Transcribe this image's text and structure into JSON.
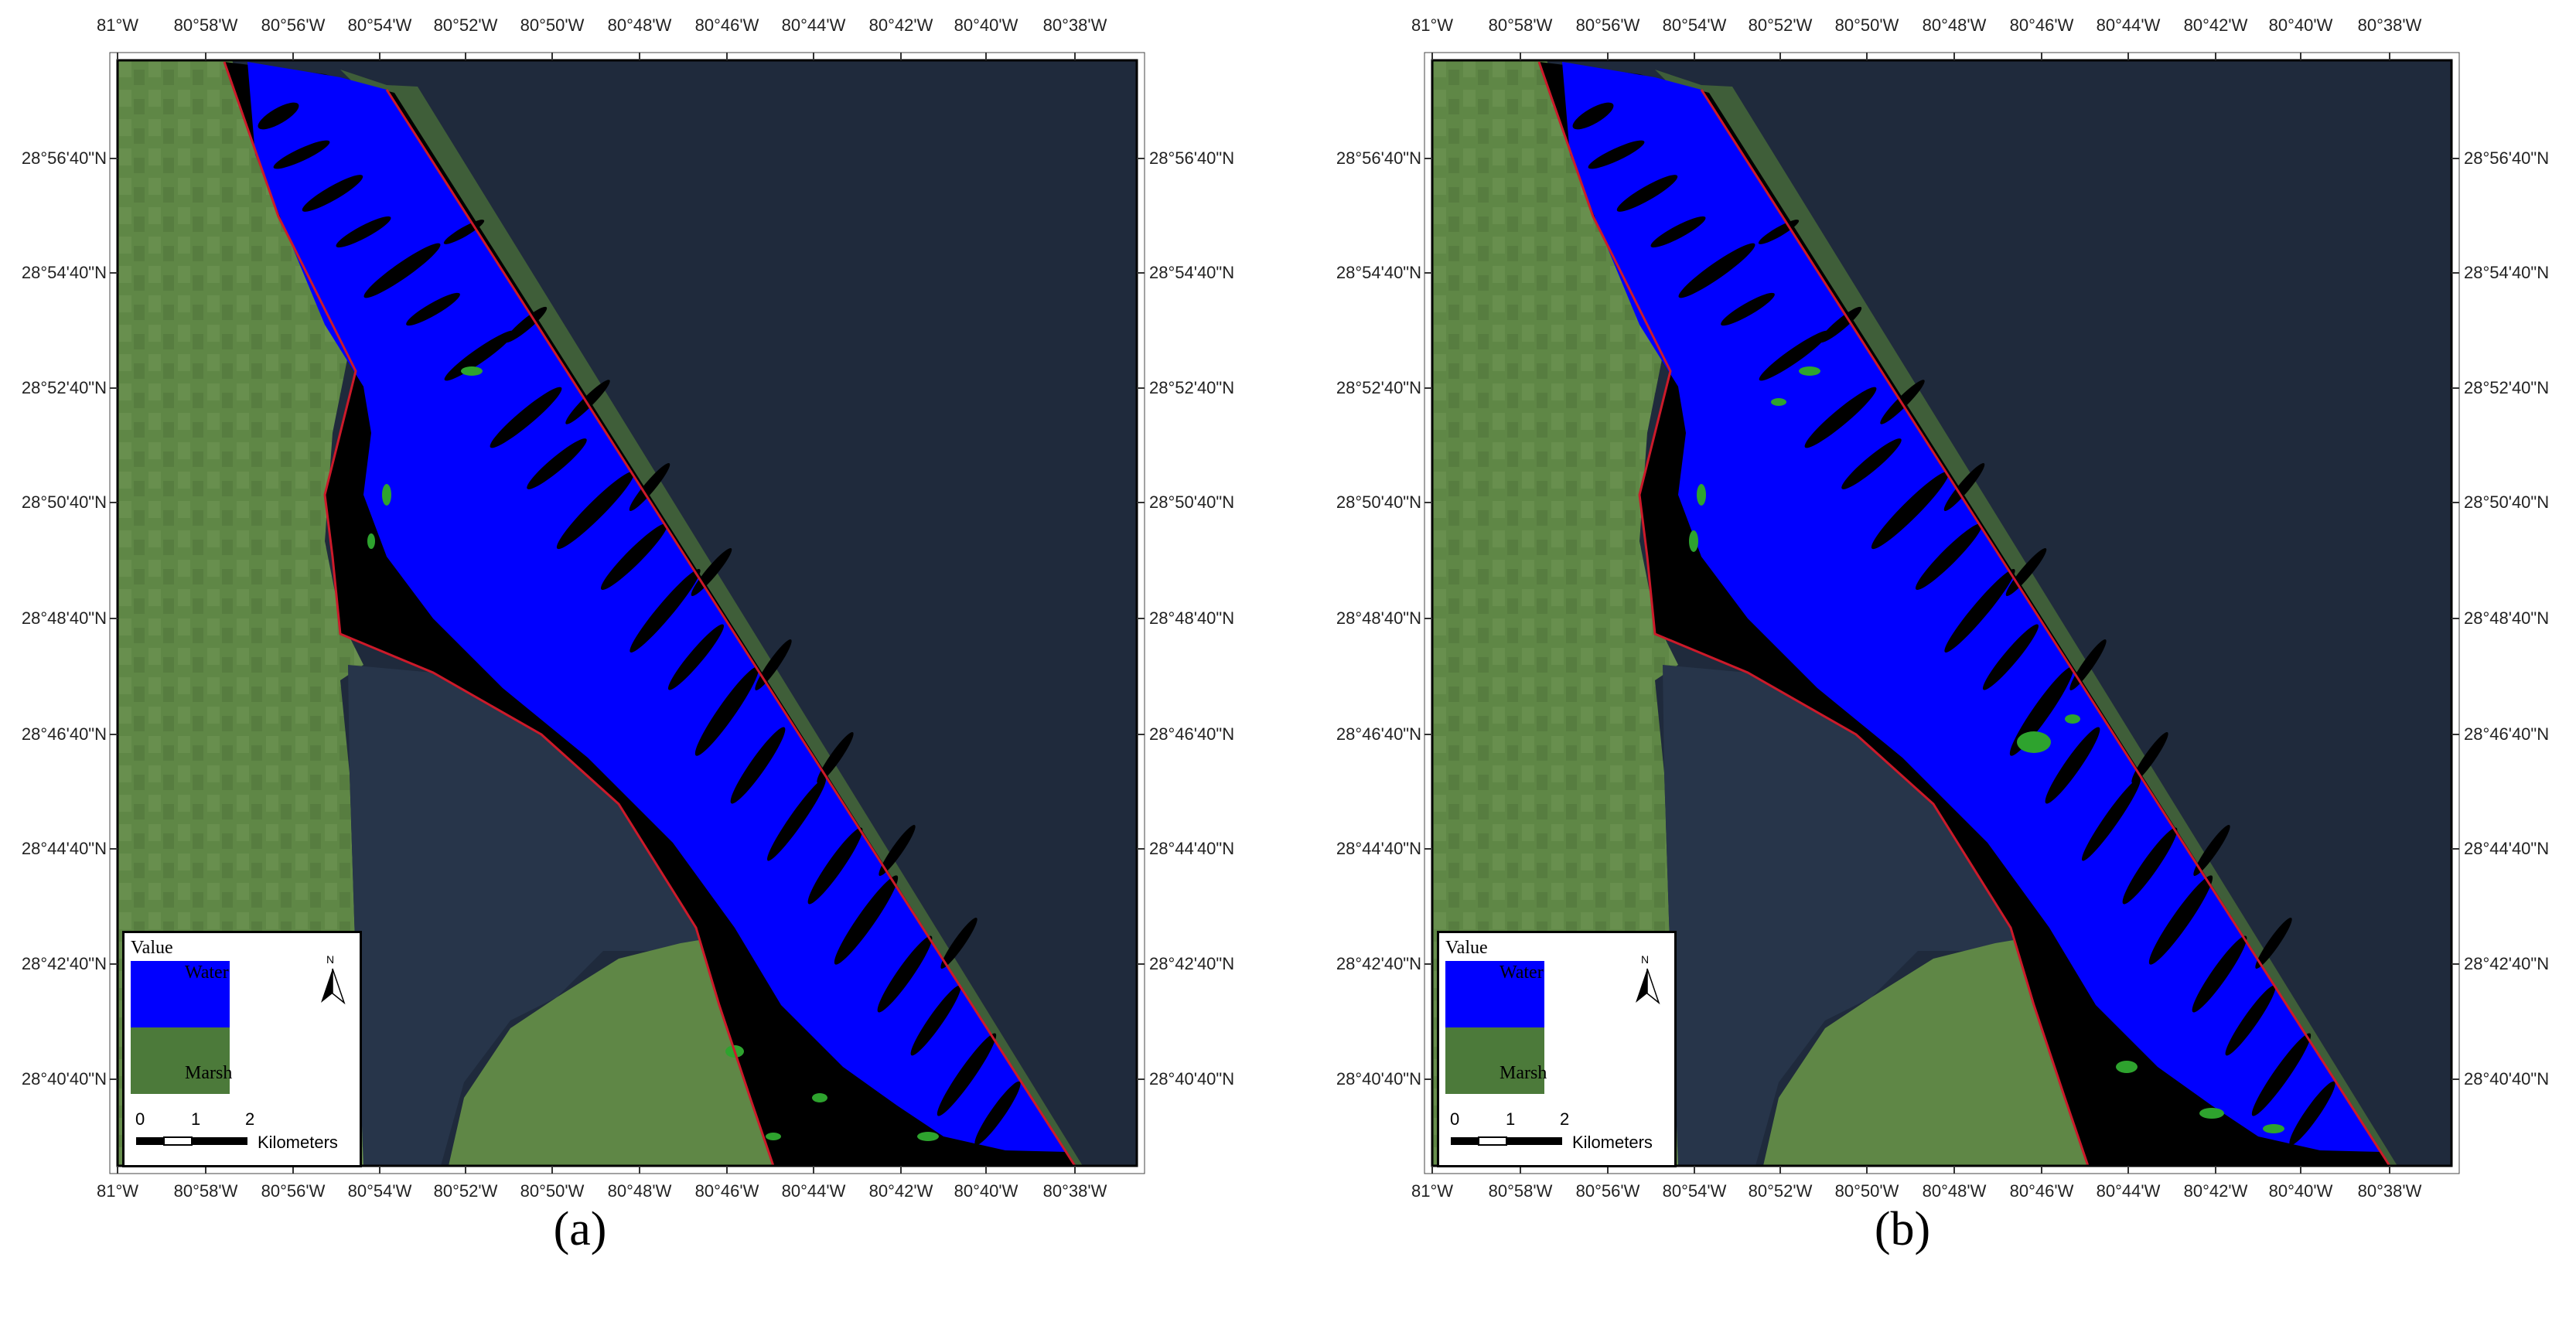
{
  "figure": {
    "panels": [
      {
        "id": "a",
        "caption": "(a)",
        "classes": {
          "title": "Value",
          "items": [
            {
              "label": "Water",
              "color": "#0000ff"
            },
            {
              "label": "Marsh",
              "color": "#4c7a3a"
            }
          ]
        },
        "scalebar": {
          "ticks": [
            "0",
            "1",
            "2"
          ],
          "unit": "Kilometers"
        },
        "north_arrow": "N"
      },
      {
        "id": "b",
        "caption": "(b)",
        "classes": {
          "title": "Value",
          "items": [
            {
              "label": "Water",
              "color": "#0000ff"
            },
            {
              "label": "Marsh",
              "color": "#4c7a3a"
            }
          ]
        },
        "scalebar": {
          "ticks": [
            "0",
            "1",
            "2"
          ],
          "unit": "Kilometers"
        },
        "north_arrow": "N"
      }
    ],
    "longitude_labels": [
      "81°W",
      "80°58'W",
      "80°56'W",
      "80°54'W",
      "80°52'W",
      "80°50'W",
      "80°48'W",
      "80°46'W",
      "80°44'W",
      "80°42'W",
      "80°40'W",
      "80°38'W"
    ],
    "latitude_labels": [
      "28°56'40\"N",
      "28°54'40\"N",
      "28°52'40\"N",
      "28°50'40\"N",
      "28°48'40\"N",
      "28°46'40\"N",
      "28°44'40\"N",
      "28°42'40\"N",
      "28°40'40\"N"
    ],
    "colors": {
      "water_class": "#0000ff",
      "marsh_class": "#4c7a3a",
      "study_boundary": "#cc1a2a",
      "ocean": "#1f2a3c",
      "land": "#5f8746",
      "lagoon_dark": "#000000"
    }
  }
}
